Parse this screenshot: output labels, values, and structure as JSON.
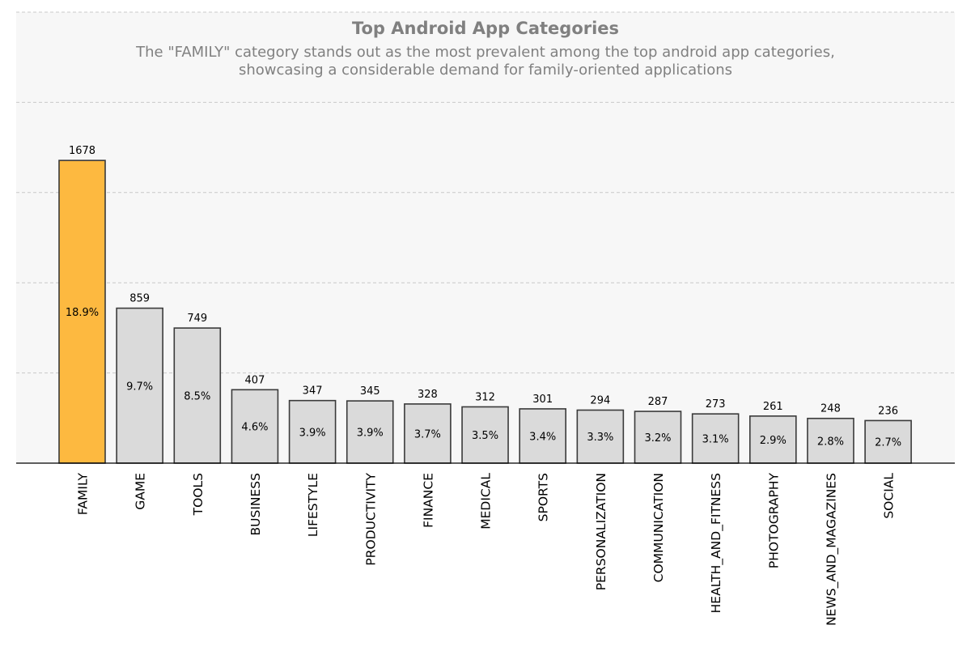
{
  "chart_data": {
    "type": "bar",
    "title": "Top Android App Categories",
    "subtitle_lines": [
      "The \"FAMILY\" category stands out as the most prevalent among the top android app categories,",
      "showcasing a considerable demand for family-oriented applications"
    ],
    "xlabel": "",
    "ylabel": "",
    "categories": [
      "FAMILY",
      "GAME",
      "TOOLS",
      "BUSINESS",
      "LIFESTYLE",
      "PRODUCTIVITY",
      "FINANCE",
      "MEDICAL",
      "SPORTS",
      "PERSONALIZATION",
      "COMMUNICATION",
      "HEALTH_AND_FITNESS",
      "PHOTOGRAPHY",
      "NEWS_AND_MAGAZINES",
      "SOCIAL"
    ],
    "values": [
      1678,
      859,
      749,
      407,
      347,
      345,
      328,
      312,
      301,
      294,
      287,
      273,
      261,
      248,
      236
    ],
    "percent_labels": [
      "18.9%",
      "9.7%",
      "8.5%",
      "4.6%",
      "3.9%",
      "3.9%",
      "3.7%",
      "3.5%",
      "3.4%",
      "3.3%",
      "3.2%",
      "3.1%",
      "2.9%",
      "2.8%",
      "2.7%"
    ],
    "ylim": [
      0,
      2500
    ],
    "y_gridlines": [
      500,
      1000,
      1500,
      2000,
      2500
    ],
    "grid": true,
    "y_tick_labels_visible": false,
    "highlight_category": "FAMILY",
    "colors": {
      "highlight": "#FDB940",
      "bar": "#DADADA",
      "bar_edge": "#3A3A3A",
      "background": "#F7F7F7",
      "grid": "#C8C8C8",
      "title": "#808080",
      "text": "#000000"
    }
  }
}
